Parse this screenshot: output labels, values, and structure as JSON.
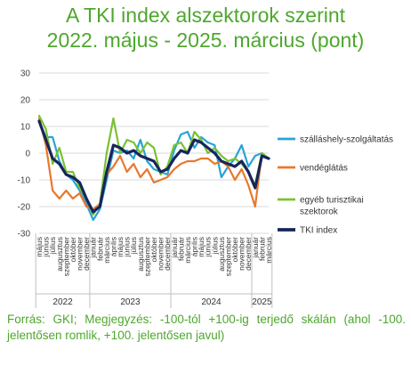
{
  "title_line1": "A TKI index alszektorok szerint",
  "title_line2": "2022. május - 2025. március (pont)",
  "footer_text": "Forrás: GKI; Megjegyzés: -100-tól +100-ig terjedő skálán (ahol -100. jelentősen romlik, +100. jelentősen javul)",
  "chart_data": {
    "type": "line",
    "ylim": [
      -30,
      30
    ],
    "yticks": [
      -30,
      -20,
      -10,
      0,
      10,
      20,
      30
    ],
    "grid": true,
    "legend_position": "right",
    "categories": [
      "május",
      "június",
      "július",
      "augusztus",
      "szeptember",
      "október",
      "november",
      "december",
      "január",
      "február",
      "március",
      "április",
      "május",
      "június",
      "július",
      "augusztus",
      "szeptember",
      "október",
      "november",
      "december",
      "január",
      "február",
      "március",
      "április",
      "május",
      "június",
      "július",
      "augusztus",
      "szeptember",
      "október",
      "november",
      "december",
      "január",
      "február",
      "március"
    ],
    "years": [
      {
        "label": "2022",
        "start": 0,
        "end": 7
      },
      {
        "label": "2023",
        "start": 8,
        "end": 19
      },
      {
        "label": "2024",
        "start": 20,
        "end": 31
      },
      {
        "label": "2025",
        "start": 32,
        "end": 34
      }
    ],
    "series": [
      {
        "name": "szálláshely-szolgáltatás",
        "color": "#29a3d6",
        "width": 2.2,
        "values": [
          12,
          6,
          6,
          -3,
          -8,
          -10,
          -14,
          -19,
          -25,
          -21,
          -10,
          1,
          0,
          1,
          -2,
          5,
          -3,
          -6,
          -7,
          -8,
          1,
          7,
          8,
          2,
          6,
          4,
          3,
          -9,
          -5,
          -2,
          3,
          -5,
          -1,
          0,
          -2
        ]
      },
      {
        "name": "vendéglátás",
        "color": "#e8792b",
        "width": 2.2,
        "values": [
          13,
          3,
          -14,
          -17,
          -14,
          -17,
          -15,
          -20,
          -21,
          -19,
          -8,
          -5,
          -1,
          -7,
          -4,
          -9,
          -6,
          -11,
          -10,
          -9,
          -6,
          -4,
          -3,
          -3,
          -2,
          -2,
          -4,
          -3,
          -5,
          -10,
          -6,
          -12,
          -20,
          0,
          -2
        ]
      },
      {
        "name": "egyéb turisztikai szektorok",
        "color": "#7ac231",
        "width": 2.2,
        "values": [
          14,
          9,
          -4,
          2,
          -7,
          -7,
          -13,
          -17,
          -23,
          -19,
          0,
          13,
          0,
          5,
          4,
          0,
          4,
          2,
          -8,
          -5,
          3,
          4,
          0,
          8,
          5,
          0,
          2,
          -1,
          -3,
          -2,
          -4,
          -7,
          -12,
          0,
          -2
        ]
      },
      {
        "name": "TKI index",
        "color": "#17265a",
        "width": 3.2,
        "values": [
          12,
          5,
          -2,
          -4,
          -8,
          -9,
          -11,
          -17,
          -22,
          -20,
          -7,
          3,
          2,
          0,
          1,
          -1,
          -2,
          -3,
          -7,
          -6,
          -2,
          1,
          0,
          5,
          4,
          2,
          0,
          -3,
          -4,
          -5,
          -3,
          -7,
          -13,
          -1,
          -2
        ]
      }
    ]
  }
}
